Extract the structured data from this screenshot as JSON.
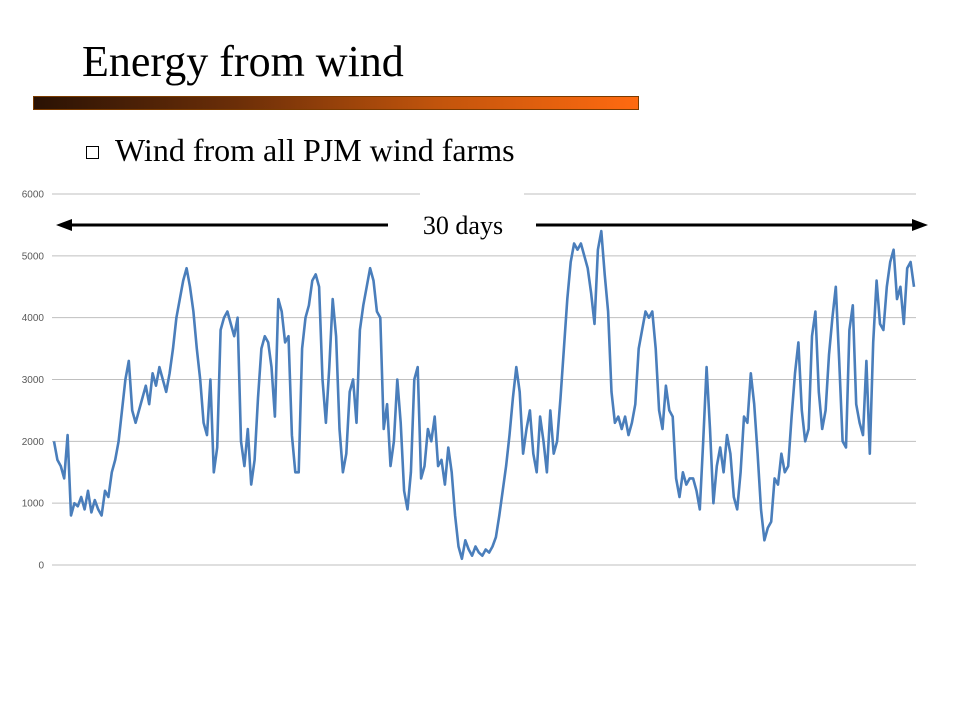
{
  "slide": {
    "title": "Energy from wind",
    "bullet": "Wind from all PJM wind farms",
    "title_bar_gradient": [
      "#2a1204",
      "#6b2e08",
      "#c1540c",
      "#ff6a10"
    ]
  },
  "chart_data": {
    "type": "line",
    "title": "",
    "xlabel": "",
    "ylabel": "",
    "ylim": [
      0,
      6000
    ],
    "yticks": [
      0,
      1000,
      2000,
      3000,
      4000,
      5000,
      6000
    ],
    "grid": true,
    "legend": "none",
    "annotation": {
      "label": "30 days",
      "style": "double-headed arrow spanning full x-range"
    },
    "series": [
      {
        "color": "#4a7ebb",
        "values": [
          2000,
          1700,
          1600,
          1400,
          2100,
          800,
          1000,
          950,
          1100,
          900,
          1200,
          850,
          1050,
          900,
          800,
          1200,
          1100,
          1500,
          1700,
          2000,
          2500,
          3000,
          3300,
          2500,
          2300,
          2500,
          2700,
          2900,
          2600,
          3100,
          2900,
          3200,
          3000,
          2800,
          3100,
          3500,
          4000,
          4300,
          4600,
          4800,
          4500,
          4100,
          3500,
          3000,
          2300,
          2100,
          3000,
          1500,
          1900,
          3800,
          4000,
          4100,
          3900,
          3700,
          4000,
          2000,
          1600,
          2200,
          1300,
          1700,
          2700,
          3500,
          3700,
          3600,
          3200,
          2400,
          4300,
          4100,
          3600,
          3700,
          2100,
          1500,
          1500,
          3500,
          4000,
          4200,
          4600,
          4700,
          4500,
          3000,
          2300,
          3200,
          4300,
          3700,
          2200,
          1500,
          1800,
          2800,
          3000,
          2300,
          3800,
          4200,
          4500,
          4800,
          4600,
          4100,
          4000,
          2200,
          2600,
          1600,
          2000,
          3000,
          2300,
          1200,
          900,
          1500,
          3000,
          3200,
          1400,
          1600,
          2200,
          2000,
          2400,
          1600,
          1700,
          1300,
          1900,
          1500,
          800,
          300,
          100,
          400,
          250,
          150,
          300,
          200,
          150,
          250,
          200,
          300,
          450,
          800,
          1200,
          1600,
          2100,
          2700,
          3200,
          2800,
          1800,
          2200,
          2500,
          1800,
          1500,
          2400,
          2000,
          1500,
          2500,
          1800,
          2000,
          2700,
          3500,
          4300,
          4900,
          5200,
          5100,
          5200,
          5000,
          4800,
          4400,
          3900,
          5100,
          5400,
          4700,
          4100,
          2800,
          2300,
          2400,
          2200,
          2400,
          2100,
          2300,
          2600,
          3500,
          3800,
          4100,
          4000,
          4100,
          3500,
          2500,
          2200,
          2900,
          2500,
          2400,
          1400,
          1100,
          1500,
          1300,
          1400,
          1400,
          1200,
          900,
          2000,
          3200,
          2200,
          1000,
          1600,
          1900,
          1500,
          2100,
          1800,
          1100,
          900,
          1500,
          2400,
          2300,
          3100,
          2600,
          1800,
          900,
          400,
          600,
          700,
          1400,
          1300,
          1800,
          1500,
          1600,
          2400,
          3100,
          3600,
          2500,
          2000,
          2200,
          3700,
          4100,
          2800,
          2200,
          2500,
          3400,
          4000,
          4500,
          3300,
          2000,
          1900,
          3800,
          4200,
          2600,
          2300,
          2100,
          3300,
          1800,
          3600,
          4600,
          3900,
          3800,
          4500,
          4900,
          5100,
          4300,
          4500,
          3900,
          4800,
          4900,
          4500
        ]
      }
    ]
  }
}
